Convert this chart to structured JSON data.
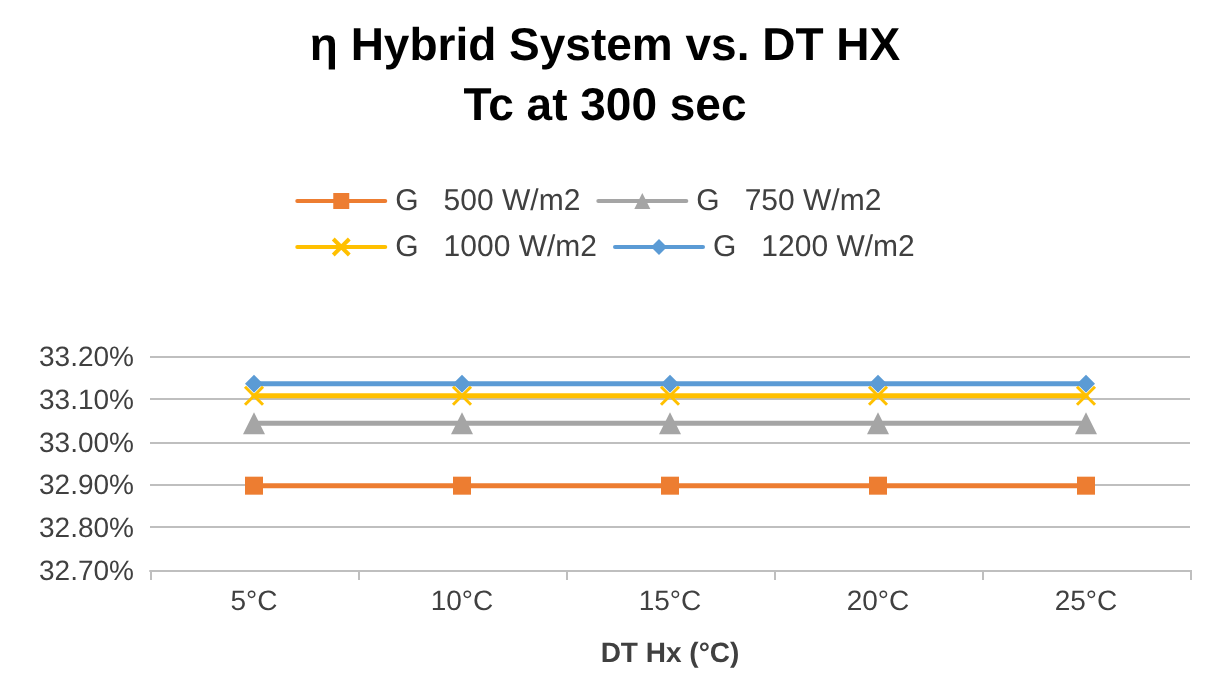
{
  "chart_data": {
    "type": "line",
    "title": "η Hybrid System vs. DT HX\nTc at 300 sec",
    "xlabel": "DT Hx (°C)",
    "categories": [
      "5°C",
      "10°C",
      "15°C",
      "20°C",
      "25°C"
    ],
    "series": [
      {
        "name": "G   500 W/m2",
        "color": "#ed7d31",
        "marker": "square",
        "values": [
          32.897,
          32.897,
          32.897,
          32.897,
          32.897
        ]
      },
      {
        "name": "G   750 W/m2",
        "color": "#a5a5a5",
        "marker": "triangle",
        "values": [
          33.043,
          33.043,
          33.043,
          33.043,
          33.043
        ]
      },
      {
        "name": "G   1000 W/m2",
        "color": "#ffc000",
        "marker": "cross",
        "values": [
          33.107,
          33.107,
          33.107,
          33.107,
          33.107
        ]
      },
      {
        "name": "G   1200 W/m2",
        "color": "#5b9bd5",
        "marker": "diamond",
        "values": [
          33.135,
          33.135,
          33.135,
          33.135,
          33.135
        ]
      }
    ],
    "ylim": [
      32.7,
      33.2
    ],
    "yticks": [
      {
        "value": 32.7,
        "label": "32.70%"
      },
      {
        "value": 32.8,
        "label": "32.80%"
      },
      {
        "value": 32.9,
        "label": "32.90%"
      },
      {
        "value": 33.0,
        "label": "33.00%"
      },
      {
        "value": 33.1,
        "label": "33.10%"
      },
      {
        "value": 33.2,
        "label": "33.20%"
      }
    ],
    "grid": "y",
    "legend": "top",
    "line_style": "solid"
  }
}
